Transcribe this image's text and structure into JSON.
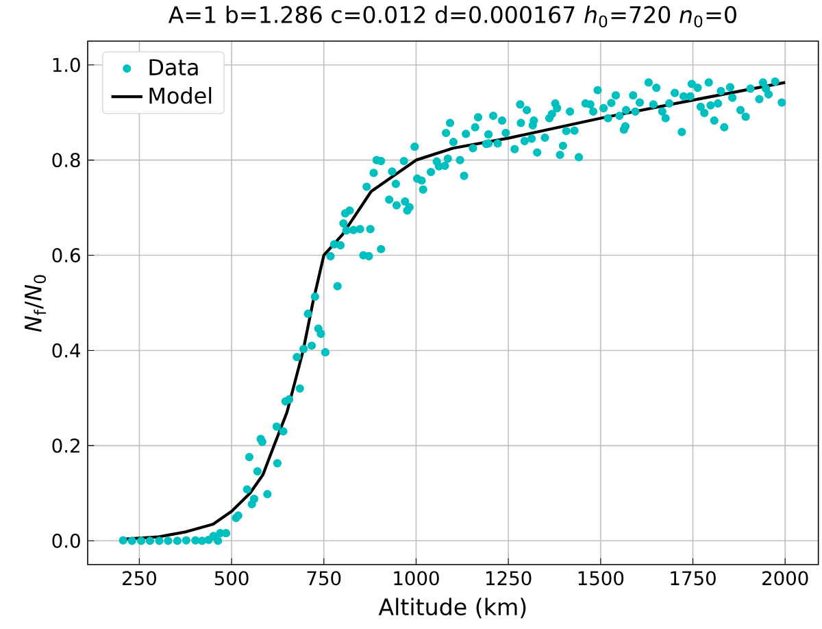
{
  "chart_data": {
    "type": "scatter",
    "title": "A=1 b=1.286 c=0.012 d=0.000167 *h*$_{0}$=720 *n*$_{0}$=0",
    "xlabel": "Altitude (km)",
    "ylabel": "*N*$_{f}$/*N*$_{0}$",
    "xlim": [
      110,
      2090
    ],
    "ylim": [
      -0.05,
      1.05
    ],
    "xticks": [
      250,
      500,
      750,
      1000,
      1250,
      1500,
      1750,
      2000
    ],
    "yticks": [
      {
        "value": 0,
        "label": "0.0"
      },
      {
        "value": 0.2,
        "label": "0.2"
      },
      {
        "value": 0.4,
        "label": "0.4"
      },
      {
        "value": 0.6,
        "label": "0.6"
      },
      {
        "value": 0.8,
        "label": "0.8"
      },
      {
        "value": 1,
        "label": "1.0"
      }
    ],
    "grid": true,
    "legend": "top left",
    "series": [
      {
        "name": "Data",
        "color": "#00bfbf",
        "marker": "circle",
        "x": [
          206,
          230,
          255,
          279,
          304,
          328,
          353,
          377,
          402,
          420,
          438,
          451,
          463,
          469,
          485,
          512,
          518,
          542,
          555,
          561,
          570,
          548,
          579,
          583,
          597,
          622,
          624,
          640,
          646,
          656,
          685,
          677,
          695,
          717,
          754,
          707,
          726,
          735,
          742,
          787,
          768,
          778,
          795,
          803,
          808,
          820,
          811,
          830,
          848,
          876,
          857,
          872,
          905,
          866,
          885,
          893,
          905,
          935,
          945,
          927,
          947,
          967,
          970,
          976,
          982,
          996,
          1003,
          1015,
          1019,
          1040,
          1056,
          1062,
          1078,
          1086,
          1081,
          1092,
          1101,
          1119,
          1130,
          1135,
          1154,
          1160,
          1168,
          1190,
          1196,
          1209,
          1233,
          1196,
          1221,
          1243,
          1282,
          1284,
          1300,
          1294,
          1313,
          1319,
          1316,
          1267,
          1328,
          1349,
          1361,
          1368,
          1377,
          1382,
          1390,
          1398,
          1407,
          1417,
          1429,
          1441,
          1459,
          1472,
          1480,
          1492,
          1508,
          1520,
          1529,
          1541,
          1551,
          1563,
          1567,
          1569,
          1588,
          1594,
          1606,
          1630,
          1643,
          1651,
          1667,
          1676,
          1686,
          1701,
          1720,
          1725,
          1743,
          1747,
          1763,
          1771,
          1781,
          1793,
          1798,
          1808,
          1818,
          1826,
          1835,
          1851,
          1857,
          1879,
          1893,
          1906,
          1930,
          1940,
          1948,
          1955,
          1973,
          1991
        ],
        "values": [
          0.001,
          0.0,
          0.0,
          0.0,
          0.0,
          0.0,
          0.0,
          0.001,
          0.001,
          0.0,
          0.002,
          0.01,
          0.0,
          0.016,
          0.016,
          0.048,
          0.053,
          0.108,
          0.077,
          0.088,
          0.146,
          0.176,
          0.214,
          0.208,
          0.098,
          0.24,
          0.163,
          0.23,
          0.293,
          0.297,
          0.32,
          0.386,
          0.403,
          0.41,
          0.396,
          0.477,
          0.513,
          0.446,
          0.435,
          0.535,
          0.598,
          0.623,
          0.621,
          0.667,
          0.688,
          0.694,
          0.652,
          0.653,
          0.655,
          0.655,
          0.6,
          0.598,
          0.613,
          0.744,
          0.773,
          0.8,
          0.798,
          0.776,
          0.75,
          0.717,
          0.705,
          0.798,
          0.713,
          0.694,
          0.701,
          0.828,
          0.761,
          0.757,
          0.738,
          0.775,
          0.797,
          0.787,
          0.788,
          0.803,
          0.857,
          0.878,
          0.838,
          0.8,
          0.767,
          0.855,
          0.825,
          0.869,
          0.89,
          0.834,
          0.854,
          0.893,
          0.883,
          0.835,
          0.835,
          0.857,
          0.917,
          0.878,
          0.905,
          0.84,
          0.845,
          0.883,
          0.873,
          0.823,
          0.816,
          0.847,
          0.888,
          0.897,
          0.919,
          0.909,
          0.811,
          0.83,
          0.861,
          0.902,
          0.862,
          0.806,
          0.919,
          0.917,
          0.902,
          0.947,
          0.909,
          0.888,
          0.92,
          0.936,
          0.893,
          0.864,
          0.871,
          0.905,
          0.936,
          0.902,
          0.921,
          0.963,
          0.917,
          0.952,
          0.902,
          0.888,
          0.919,
          0.941,
          0.859,
          0.934,
          0.934,
          0.96,
          0.952,
          0.912,
          0.899,
          0.963,
          0.915,
          0.883,
          0.919,
          0.945,
          0.869,
          0.953,
          0.931,
          0.905,
          0.891,
          0.95,
          0.928,
          0.963,
          0.95,
          0.938,
          0.965,
          0.921
        ]
      },
      {
        "name": "Model",
        "type": "line",
        "color": "#000000",
        "marker": "none",
        "x": [
          200,
          300,
          377,
          450,
          500,
          550,
          585,
          610,
          650,
          694,
          720,
          750,
          800,
          878,
          1000,
          1100,
          1250,
          1500,
          1750,
          2000
        ],
        "values": [
          0.003,
          0.008,
          0.019,
          0.035,
          0.062,
          0.1,
          0.139,
          0.19,
          0.27,
          0.4,
          0.5,
          0.6,
          0.643,
          0.734,
          0.8,
          0.825,
          0.846,
          0.888,
          0.926,
          0.963
        ]
      }
    ]
  }
}
